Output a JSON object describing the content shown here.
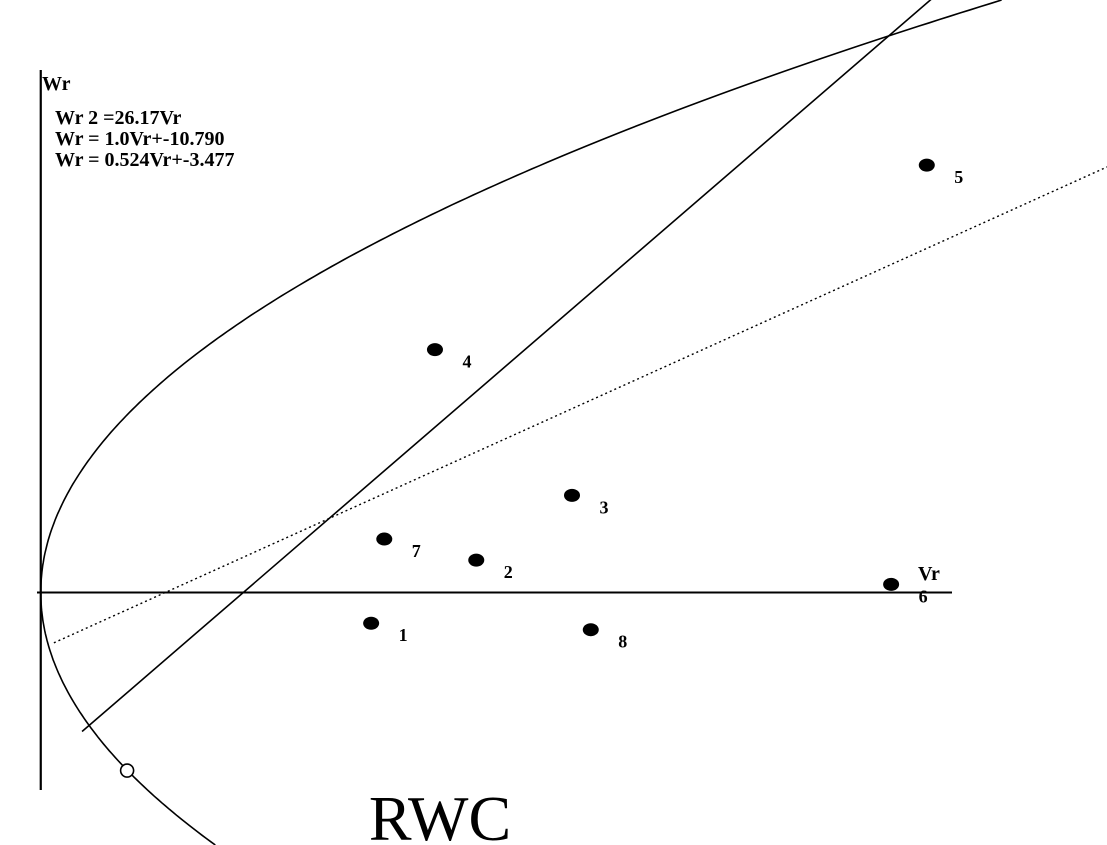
{
  "chart_data": {
    "type": "scatter",
    "title": "RWC",
    "xlabel": "Vr",
    "ylabel": "Wr",
    "x_axis_origin": 0,
    "y_axis_origin": 0,
    "grid": false,
    "equations": [
      "Wr 2 =26.17Vr",
      "Wr = 1.0Vr+-10.790",
      "Wr = 0.524Vr+-3.477"
    ],
    "series": [
      {
        "type": "curve",
        "equation": "Wr^2 = 26.17 Vr",
        "k": 26.17,
        "style": "solid"
      },
      {
        "type": "line",
        "slope": 1.0,
        "intercept": -10.79,
        "style": "solid",
        "x_range": [
          2.2,
          61.5
        ]
      },
      {
        "type": "line",
        "slope": 0.524,
        "intercept": -3.477,
        "style": "dotted",
        "x_range": [
          0.7,
          68.8
        ]
      }
    ],
    "points": [
      {
        "label": "1",
        "x": 17.6,
        "y": -1.9
      },
      {
        "label": "2",
        "x": 23.2,
        "y": 2.0
      },
      {
        "label": "3",
        "x": 28.3,
        "y": 6.0
      },
      {
        "label": "4",
        "x": 21.0,
        "y": 15.0
      },
      {
        "label": "5",
        "x": 47.2,
        "y": 26.4
      },
      {
        "label": "6",
        "x": 45.3,
        "y": 0.5
      },
      {
        "label": "7",
        "x": 18.3,
        "y": 3.3
      },
      {
        "label": "8",
        "x": 29.3,
        "y": -2.3
      }
    ],
    "open_point": {
      "x": 4.6,
      "y": -11.0
    },
    "xlim": [
      -0.2,
      56.8
    ],
    "ylim": [
      -15.6,
      36.6
    ]
  }
}
